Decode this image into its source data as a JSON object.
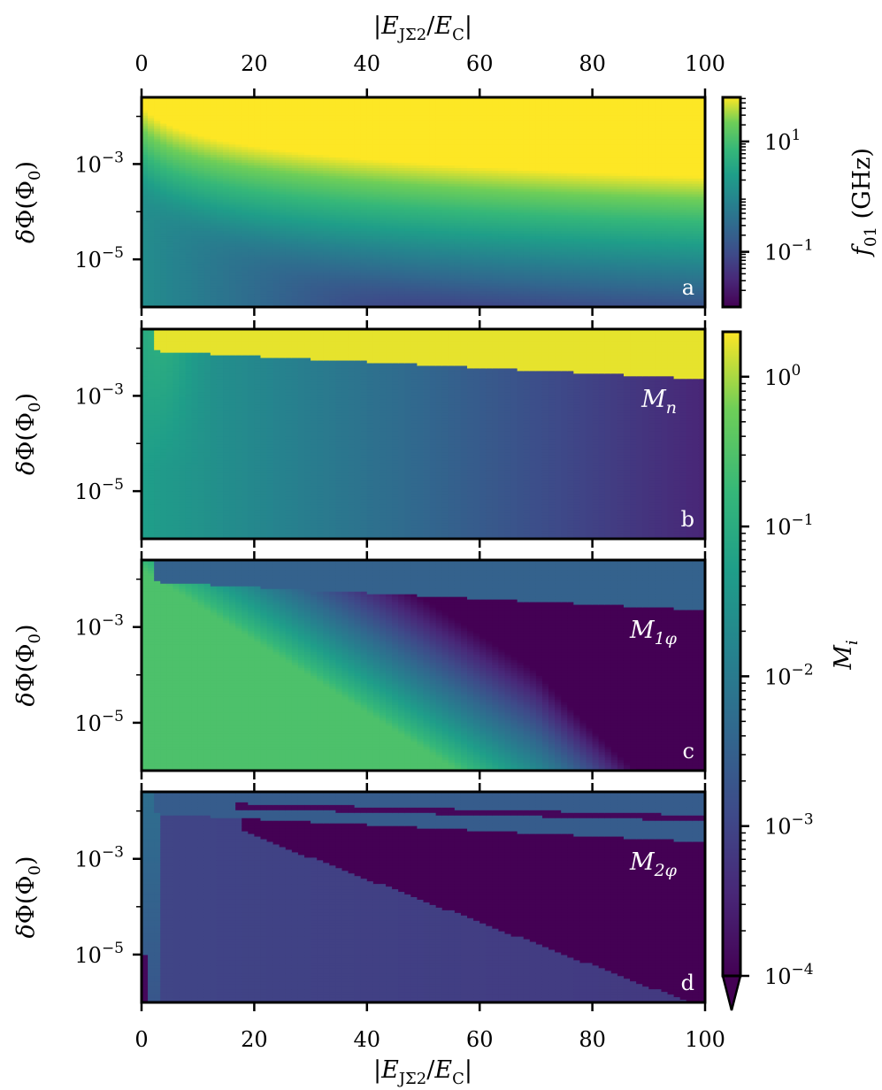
{
  "chart_data": {
    "type": "heatmap",
    "x_axis": {
      "label_top": "|E_JΣ2 / E_C|",
      "label_bottom": "|E_JΣ2 / E_C|",
      "range": [
        0,
        100
      ],
      "ticks": [
        "0",
        "20",
        "40",
        "60",
        "80",
        "100"
      ]
    },
    "y_axis": {
      "label": "δΦ(Φ0)",
      "scale": "log",
      "ticks": [
        "10^-3",
        "10^-5"
      ]
    },
    "panels": [
      {
        "letter": "a",
        "name": "",
        "quantity": "f01",
        "colorbar": "f01"
      },
      {
        "letter": "b",
        "name": "M_n",
        "quantity": "Mn",
        "colorbar": "Mi"
      },
      {
        "letter": "c",
        "name": "M_1φ",
        "quantity": "M1phi",
        "colorbar": "Mi"
      },
      {
        "letter": "d",
        "name": "M_2φ",
        "quantity": "M2phi",
        "colorbar": "Mi"
      }
    ],
    "colorbars": [
      {
        "id": "f01",
        "label": "f01 (GHz)",
        "scale": "log",
        "range_exp": [
          -2,
          1.8
        ],
        "tick_labels": [
          "10^1",
          "10^-1"
        ]
      },
      {
        "id": "Mi",
        "label": "Mi",
        "scale": "log",
        "range_exp": [
          -4,
          0.3
        ],
        "tick_labels": [
          "10^0",
          "10^-1",
          "10^-2",
          "10^-3",
          "10^-4"
        ],
        "extend": "min"
      }
    ],
    "colormap": "viridis"
  }
}
